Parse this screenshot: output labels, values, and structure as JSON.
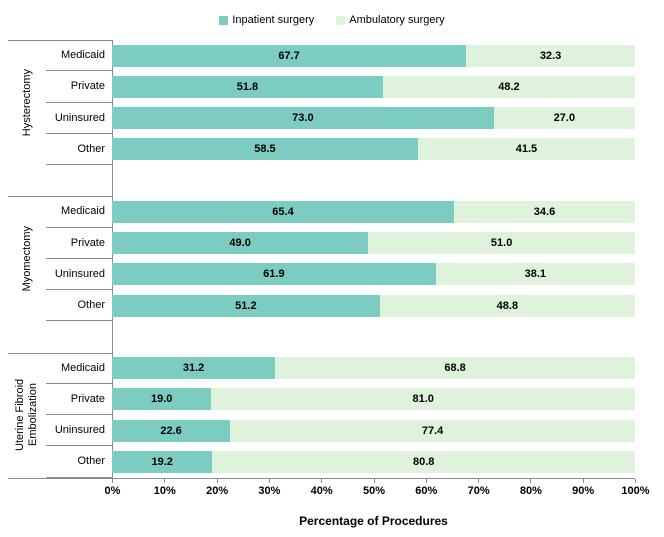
{
  "legend": {
    "items": [
      {
        "label": "Inpatient surgery",
        "color": "#7cccc1"
      },
      {
        "label": "Ambulatory surgery",
        "color": "#dff2dc"
      }
    ]
  },
  "chart_data": {
    "type": "bar",
    "orientation": "horizontal",
    "stacked": true,
    "xlabel": "Percentage of Procedures",
    "xlim": [
      0,
      100
    ],
    "x_tick_labels": [
      "0%",
      "10%",
      "20%",
      "30%",
      "40%",
      "50%",
      "60%",
      "70%",
      "80%",
      "90%",
      "100%"
    ],
    "legend_position": "top",
    "grid": false,
    "value_label_decimals": 1,
    "series_names": [
      "Inpatient surgery",
      "Ambulatory surgery"
    ],
    "colors": {
      "Inpatient surgery": "#7cccc1",
      "Ambulatory surgery": "#dff2dc"
    },
    "groups": [
      {
        "label": "Hysterectomy",
        "categories": [
          "Medicaid",
          "Private",
          "Uninsured",
          "Other"
        ],
        "series": [
          {
            "name": "Inpatient surgery",
            "values": [
              67.7,
              51.8,
              73.0,
              58.5
            ]
          },
          {
            "name": "Ambulatory surgery",
            "values": [
              32.3,
              48.2,
              27.0,
              41.5
            ]
          }
        ]
      },
      {
        "label": "Myomectomy",
        "categories": [
          "Medicaid",
          "Private",
          "Uninsured",
          "Other"
        ],
        "series": [
          {
            "name": "Inpatient surgery",
            "values": [
              65.4,
              49.0,
              61.9,
              51.2
            ]
          },
          {
            "name": "Ambulatory surgery",
            "values": [
              34.6,
              51.0,
              38.1,
              48.8
            ]
          }
        ]
      },
      {
        "label": "Uterine Fibroid Embolization",
        "categories": [
          "Medicaid",
          "Private",
          "Uninsured",
          "Other"
        ],
        "series": [
          {
            "name": "Inpatient surgery",
            "values": [
              31.2,
              19.0,
              22.6,
              19.2
            ]
          },
          {
            "name": "Ambulatory surgery",
            "values": [
              68.8,
              81.0,
              77.4,
              80.8
            ]
          }
        ]
      }
    ]
  }
}
